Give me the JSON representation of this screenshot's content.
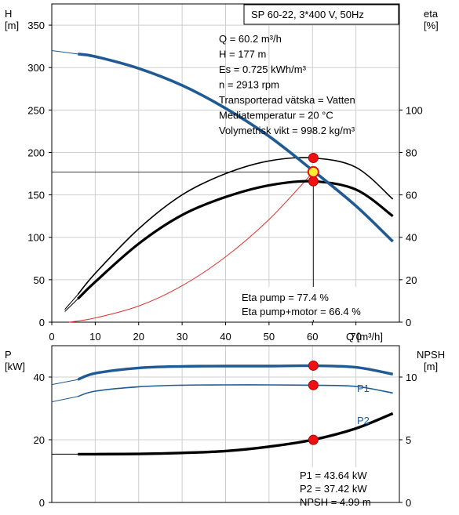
{
  "chart_data": [
    {
      "type": "line",
      "title": "SP 60-22, 3*400 V, 50Hz",
      "xlabel": "Q [m³/h]",
      "ylabel": {
        "line1": "H",
        "line2": "[m]"
      },
      "ylabel_right": {
        "line1": "eta",
        "line2": "[%]"
      },
      "xlim": [
        0,
        80
      ],
      "ylim": [
        0,
        375
      ],
      "ylim_right": [
        0,
        150
      ],
      "x_ticks": [
        0,
        10,
        20,
        30,
        40,
        50,
        60,
        70
      ],
      "y_ticks": [
        0,
        50,
        100,
        150,
        200,
        250,
        300,
        350
      ],
      "y_ticks_right": [
        0,
        20,
        40,
        60,
        80,
        100
      ],
      "grid": true,
      "series": [
        {
          "key": "H",
          "axis": "left",
          "color": "#1f5a94",
          "x": [
            6,
            10,
            20,
            30,
            40,
            50,
            60,
            70,
            78.5
          ],
          "y": [
            316,
            313,
            299,
            279,
            252,
            219,
            179,
            137,
            95
          ]
        },
        {
          "key": "eta_pump",
          "axis": "right",
          "color": "#000000",
          "x": [
            6,
            10,
            20,
            30,
            40,
            50,
            60,
            70,
            78.5
          ],
          "y": [
            13,
            23,
            44,
            60,
            70,
            76,
            77.4,
            73,
            58
          ]
        },
        {
          "key": "eta_pump_motor",
          "axis": "right",
          "color": "#000000",
          "x": [
            6,
            10,
            20,
            30,
            40,
            50,
            60,
            70,
            78.5
          ],
          "y": [
            11,
            19,
            37,
            50.5,
            59,
            64.5,
            66.4,
            62.5,
            50
          ]
        },
        {
          "key": "system",
          "axis": "left",
          "color": "#e03030",
          "x": [
            4,
            10,
            20,
            30,
            40,
            50,
            60.2
          ],
          "y": [
            0,
            5,
            19,
            43,
            77,
            121,
            177
          ]
        }
      ],
      "operating_point": {
        "x": 60.2,
        "H": 177,
        "eta_pump": 77.4,
        "eta_pump_motor": 66.4
      },
      "annotation_lines": [
        "Q = 60.2 m³/h",
        "H = 177 m",
        "Es = 0.725 kWh/m³",
        "n = 2913 rpm",
        "Transporterad vätska = Vatten",
        "Mediatemperatur = 20 °C",
        "Volymetrisk vikt = 998.2 kg/m³"
      ],
      "eta_labels": [
        "Eta pump = 77.4 %",
        "Eta pump+motor = 66.4 %"
      ]
    },
    {
      "type": "line",
      "ylabel": {
        "line1": "P",
        "line2": "[kW]"
      },
      "ylabel_right": {
        "line1": "NPSH",
        "line2": "[m]"
      },
      "xlim": [
        0,
        80
      ],
      "ylim": [
        0,
        50
      ],
      "ylim_right": [
        0,
        12.5
      ],
      "y_ticks": [
        0,
        20,
        40
      ],
      "y_ticks_right": [
        0,
        5,
        10
      ],
      "grid": true,
      "series": [
        {
          "name": "P1",
          "key": "P1",
          "axis": "left",
          "color": "#1f5a94",
          "x": [
            6,
            10,
            20,
            30,
            40,
            50,
            60,
            70,
            78.5
          ],
          "y": [
            39.2,
            41.2,
            42.9,
            43.4,
            43.5,
            43.5,
            43.6,
            43.1,
            40.9
          ]
        },
        {
          "name": "P2",
          "key": "P2",
          "axis": "left",
          "color": "#1f5a94",
          "x": [
            6,
            10,
            20,
            30,
            40,
            50,
            60,
            70,
            78.5
          ],
          "y": [
            33.8,
            35.5,
            36.9,
            37.4,
            37.5,
            37.5,
            37.4,
            37.0,
            34.9
          ]
        },
        {
          "key": "NPSH",
          "axis": "right",
          "color": "#000000",
          "x": [
            6,
            10,
            20,
            30,
            40,
            50,
            60,
            70,
            78.5
          ],
          "y": [
            3.85,
            3.85,
            3.87,
            3.95,
            4.1,
            4.45,
            4.99,
            5.9,
            7.1
          ]
        }
      ],
      "operating_point": {
        "x": 60.2,
        "P1": 43.64,
        "P2": 37.42,
        "NPSH": 4.99
      },
      "annotation_lines": [
        "P1 = 43.64 kW",
        "P2 = 37.42 kW",
        "NPSH = 4.99 m"
      ]
    }
  ]
}
